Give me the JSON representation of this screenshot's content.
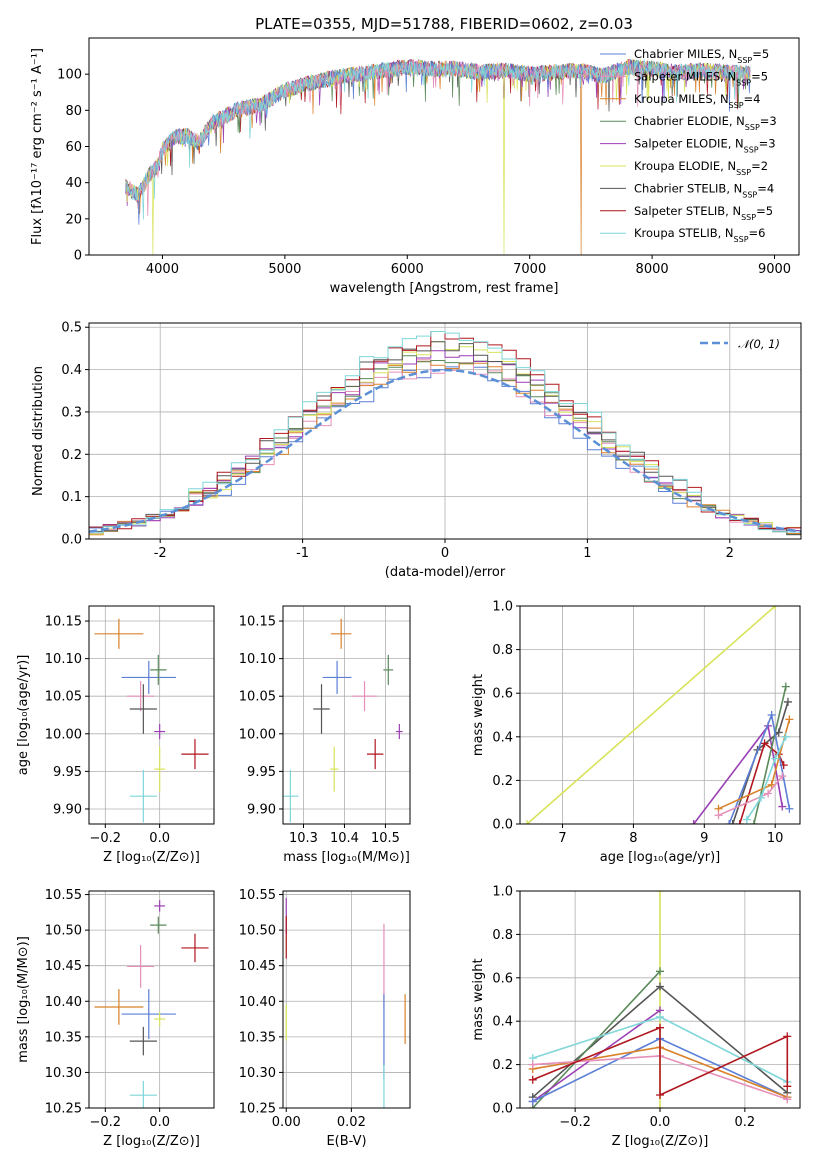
{
  "figure": {
    "title": "PLATE=0355, MJD=51788, FIBERID=0602, z=0.03"
  },
  "colors": {
    "Chabrier MILES": "#5b7fd6",
    "Salpeter MILES": "#e58fb9",
    "Kroupa MILES": "#d9822b",
    "Chabrier ELODIE": "#5a8a5a",
    "Salpeter ELODIE": "#9b3fb5",
    "Kroupa ELODIE": "#d8e35a",
    "Chabrier STELIB": "#555555",
    "Salpeter STELIB": "#b0171f",
    "Kroupa STELIB": "#7fd6d9",
    "gaussian": "#5b8fd6",
    "grid": "#b0b0b0"
  },
  "chart_data": [
    {
      "id": "spectrum",
      "type": "line",
      "xlabel": "wavelength [Angstrom, rest frame]",
      "ylabel": "Flux [fλ10⁻¹⁷ erg cm⁻² s⁻¹ A⁻¹]",
      "xlim": [
        3400,
        9200
      ],
      "ylim": [
        0,
        120
      ],
      "xticks": [
        4000,
        5000,
        6000,
        7000,
        8000,
        9000
      ],
      "yticks": [
        0,
        20,
        40,
        60,
        80,
        100
      ],
      "legend": "top-right",
      "continuum": {
        "x": [
          3700,
          3800,
          3900,
          3950,
          4000,
          4100,
          4200,
          4300,
          4400,
          4500,
          4600,
          4800,
          5000,
          5200,
          5400,
          5600,
          5800,
          6000,
          6200,
          6400,
          6600,
          6800,
          7000,
          7200,
          7400,
          7600,
          7800,
          8000,
          8200,
          8400,
          8600,
          8800
        ],
        "y": [
          38,
          33,
          45,
          48,
          58,
          65,
          66,
          62,
          73,
          76,
          80,
          83,
          91,
          95,
          98,
          100,
          102,
          104,
          103,
          103,
          101,
          102,
          100,
          101,
          102,
          99,
          104,
          103,
          101,
          102,
          101,
          100
        ]
      },
      "dropouts": [
        {
          "series": "Kroupa ELODIE",
          "x": 3920,
          "y": 0
        },
        {
          "series": "Kroupa ELODIE",
          "x": 6790,
          "y": 0
        },
        {
          "series": "Kroupa MILES",
          "x": 7420,
          "y": 0
        }
      ],
      "series": [
        {
          "name": "Chabrier MILES, N_SSP=5",
          "key": "Chabrier MILES",
          "label_main": "Chabrier MILES, N",
          "label_sub": "SSP",
          "label_tail": "=5"
        },
        {
          "name": "Salpeter MILES, N_SSP=5",
          "key": "Salpeter MILES",
          "label_main": "Salpeter MILES, N",
          "label_sub": "SSP",
          "label_tail": "=5"
        },
        {
          "name": "Kroupa MILES, N_SSP=4",
          "key": "Kroupa MILES",
          "label_main": "Kroupa MILES, N",
          "label_sub": "SSP",
          "label_tail": "=4"
        },
        {
          "name": "Chabrier ELODIE, N_SSP=3",
          "key": "Chabrier ELODIE",
          "label_main": "Chabrier ELODIE, N",
          "label_sub": "SSP",
          "label_tail": "=3"
        },
        {
          "name": "Salpeter ELODIE, N_SSP=3",
          "key": "Salpeter ELODIE",
          "label_main": "Salpeter ELODIE, N",
          "label_sub": "SSP",
          "label_tail": "=3"
        },
        {
          "name": "Kroupa ELODIE, N_SSP=2",
          "key": "Kroupa ELODIE",
          "label_main": "Kroupa ELODIE, N",
          "label_sub": "SSP",
          "label_tail": "=2"
        },
        {
          "name": "Chabrier STELIB, N_SSP=4",
          "key": "Chabrier STELIB",
          "label_main": "Chabrier STELIB, N",
          "label_sub": "SSP",
          "label_tail": "=4"
        },
        {
          "name": "Salpeter STELIB, N_SSP=5",
          "key": "Salpeter STELIB",
          "label_main": "Salpeter STELIB, N",
          "label_sub": "SSP",
          "label_tail": "=5"
        },
        {
          "name": "Kroupa STELIB, N_SSP=6",
          "key": "Kroupa STELIB",
          "label_main": "Kroupa STELIB, N",
          "label_sub": "SSP",
          "label_tail": "=6"
        }
      ]
    },
    {
      "id": "residuals",
      "type": "line",
      "xlabel": "(data-model)/error",
      "ylabel": "Normed distribution",
      "xlim": [
        -2.5,
        2.5
      ],
      "ylim": [
        0,
        0.51
      ],
      "xticks": [
        -2,
        -1,
        0,
        1,
        2
      ],
      "yticks": [
        0.0,
        0.1,
        0.2,
        0.3,
        0.4,
        0.5
      ],
      "ytick_labels": [
        "0.0",
        "0.1",
        "0.2",
        "0.3",
        "0.4",
        "0.5"
      ],
      "legend": "top-right",
      "legend_label": "𝒩(0, 1)",
      "bin_width": 0.1,
      "series_keys": [
        "Chabrier MILES",
        "Salpeter MILES",
        "Kroupa MILES",
        "Chabrier ELODIE",
        "Salpeter ELODIE",
        "Kroupa ELODIE",
        "Chabrier STELIB",
        "Salpeter STELIB",
        "Kroupa STELIB"
      ],
      "peak_values": {
        "max": 0.49,
        "min": 0.39
      }
    },
    {
      "id": "age-vs-Z",
      "type": "scatter",
      "xlabel": "Z [log₁₀(Z/Z⊙)]",
      "ylabel": "age  [log₁₀(age/yr)]",
      "xlim": [
        -0.26,
        0.2
      ],
      "ylim": [
        9.88,
        10.17
      ],
      "xticks": [
        -0.2,
        0.0
      ],
      "yticks": [
        9.9,
        9.95,
        10.0,
        10.05,
        10.1,
        10.15
      ],
      "xtick_labels": [
        "−0.2",
        "0.0"
      ],
      "ytick_labels": [
        "9.90",
        "9.95",
        "10.00",
        "10.05",
        "10.10",
        "10.15"
      ],
      "points": [
        {
          "key": "Kroupa MILES",
          "x": -0.15,
          "y": 10.133,
          "xerr": 0.09,
          "yerr": 0.02
        },
        {
          "key": "Chabrier MILES",
          "x": -0.04,
          "y": 10.075,
          "xerr": 0.1,
          "yerr": 0.022
        },
        {
          "key": "Chabrier ELODIE",
          "x": -0.005,
          "y": 10.085,
          "xerr": 0.03,
          "yerr": 0.02
        },
        {
          "key": "Salpeter MILES",
          "x": -0.07,
          "y": 10.05,
          "xerr": 0.05,
          "yerr": 0.02
        },
        {
          "key": "Chabrier STELIB",
          "x": -0.06,
          "y": 10.033,
          "xerr": 0.05,
          "yerr": 0.033
        },
        {
          "key": "Salpeter ELODIE",
          "x": 0.0,
          "y": 10.003,
          "xerr": 0.02,
          "yerr": 0.01
        },
        {
          "key": "Salpeter STELIB",
          "x": 0.13,
          "y": 9.973,
          "xerr": 0.05,
          "yerr": 0.02
        },
        {
          "key": "Kroupa ELODIE",
          "x": 0.0,
          "y": 9.953,
          "xerr": 0.02,
          "yerr": 0.03
        },
        {
          "key": "Kroupa STELIB",
          "x": -0.06,
          "y": 9.917,
          "xerr": 0.05,
          "yerr": 0.035
        }
      ]
    },
    {
      "id": "age-vs-mass",
      "type": "scatter",
      "xlabel": "mass [log₁₀(M/M⊙)]",
      "ylabel": "",
      "xlim": [
        10.25,
        10.56
      ],
      "ylim": [
        9.88,
        10.17
      ],
      "xticks": [
        10.3,
        10.4,
        10.5
      ],
      "yticks": [
        9.9,
        9.95,
        10.0,
        10.05,
        10.1,
        10.15
      ],
      "xtick_labels": [
        "10.3",
        "10.4",
        "10.5"
      ],
      "ytick_labels": [
        "9.90",
        "9.95",
        "10.00",
        "10.05",
        "10.10",
        "10.15"
      ],
      "points": [
        {
          "key": "Kroupa MILES",
          "x": 10.392,
          "y": 10.133,
          "xerr": 0.025,
          "yerr": 0.02
        },
        {
          "key": "Chabrier MILES",
          "x": 10.382,
          "y": 10.075,
          "xerr": 0.035,
          "yerr": 0.022
        },
        {
          "key": "Chabrier ELODIE",
          "x": 10.507,
          "y": 10.085,
          "xerr": 0.012,
          "yerr": 0.02
        },
        {
          "key": "Salpeter MILES",
          "x": 10.449,
          "y": 10.05,
          "xerr": 0.03,
          "yerr": 0.02
        },
        {
          "key": "Chabrier STELIB",
          "x": 10.344,
          "y": 10.033,
          "xerr": 0.02,
          "yerr": 0.033
        },
        {
          "key": "Salpeter ELODIE",
          "x": 10.534,
          "y": 10.003,
          "xerr": 0.008,
          "yerr": 0.01
        },
        {
          "key": "Salpeter STELIB",
          "x": 10.475,
          "y": 9.973,
          "xerr": 0.02,
          "yerr": 0.02
        },
        {
          "key": "Kroupa ELODIE",
          "x": 10.375,
          "y": 9.953,
          "xerr": 0.01,
          "yerr": 0.03
        },
        {
          "key": "Kroupa STELIB",
          "x": 10.268,
          "y": 9.917,
          "xerr": 0.02,
          "yerr": 0.035
        }
      ]
    },
    {
      "id": "weight-vs-age",
      "type": "line",
      "xlabel": "age  [log₁₀(age/yr)]",
      "ylabel": "mass weight",
      "xlim": [
        6.4,
        10.35
      ],
      "ylim": [
        0,
        1.0
      ],
      "xticks": [
        7,
        8,
        9,
        10
      ],
      "yticks": [
        0.0,
        0.2,
        0.4,
        0.6,
        0.8,
        1.0
      ],
      "ytick_labels": [
        "0.0",
        "0.2",
        "0.4",
        "0.6",
        "0.8",
        "1.0"
      ],
      "series": [
        {
          "key": "Kroupa ELODIE",
          "x": [
            6.5,
            10.0
          ],
          "y": [
            0.0,
            1.0
          ]
        },
        {
          "key": "Salpeter ELODIE",
          "x": [
            8.85,
            9.9,
            10.1
          ],
          "y": [
            0.0,
            0.45,
            0.08
          ]
        },
        {
          "key": "Chabrier STELIB",
          "x": [
            9.4,
            9.75,
            10.05,
            10.18
          ],
          "y": [
            0.0,
            0.34,
            0.42,
            0.56
          ]
        },
        {
          "key": "Salpeter STELIB",
          "x": [
            9.5,
            9.85,
            10.05,
            10.12
          ],
          "y": [
            0.0,
            0.37,
            0.32,
            0.27
          ]
        },
        {
          "key": "Chabrier ELODIE",
          "x": [
            9.7,
            10.15
          ],
          "y": [
            0.0,
            0.63
          ]
        },
        {
          "key": "Chabrier MILES",
          "x": [
            9.35,
            9.95,
            10.2
          ],
          "y": [
            0.0,
            0.5,
            0.07
          ]
        },
        {
          "key": "Kroupa MILES",
          "x": [
            9.2,
            9.95,
            10.2
          ],
          "y": [
            0.07,
            0.18,
            0.48
          ]
        },
        {
          "key": "Salpeter MILES",
          "x": [
            9.2,
            9.9,
            10.1
          ],
          "y": [
            0.04,
            0.14,
            0.22
          ]
        },
        {
          "key": "Kroupa STELIB",
          "x": [
            9.6,
            9.8,
            10.0,
            10.15
          ],
          "y": [
            0.02,
            0.12,
            0.3,
            0.4
          ]
        }
      ]
    },
    {
      "id": "mass-vs-Z",
      "type": "scatter",
      "xlabel": "Z [log₁₀(Z/Z⊙)]",
      "ylabel": "mass [log₁₀(M/M⊙)]",
      "xlim": [
        -0.26,
        0.2
      ],
      "ylim": [
        10.25,
        10.555
      ],
      "xticks": [
        -0.2,
        0.0
      ],
      "yticks": [
        10.25,
        10.3,
        10.35,
        10.4,
        10.45,
        10.5,
        10.55
      ],
      "xtick_labels": [
        "−0.2",
        "0.0"
      ],
      "ytick_labels": [
        "10.25",
        "10.30",
        "10.35",
        "10.40",
        "10.45",
        "10.50",
        "10.55"
      ],
      "points": [
        {
          "key": "Salpeter ELODIE",
          "x": 0.0,
          "y": 10.534,
          "xerr": 0.02,
          "yerr": 0.008
        },
        {
          "key": "Chabrier ELODIE",
          "x": -0.005,
          "y": 10.507,
          "xerr": 0.03,
          "yerr": 0.012
        },
        {
          "key": "Salpeter STELIB",
          "x": 0.13,
          "y": 10.475,
          "xerr": 0.05,
          "yerr": 0.02
        },
        {
          "key": "Salpeter MILES",
          "x": -0.07,
          "y": 10.449,
          "xerr": 0.05,
          "yerr": 0.03
        },
        {
          "key": "Kroupa MILES",
          "x": -0.15,
          "y": 10.392,
          "xerr": 0.09,
          "yerr": 0.025
        },
        {
          "key": "Chabrier MILES",
          "x": -0.04,
          "y": 10.382,
          "xerr": 0.1,
          "yerr": 0.035
        },
        {
          "key": "Kroupa ELODIE",
          "x": 0.0,
          "y": 10.375,
          "xerr": 0.02,
          "yerr": 0.01
        },
        {
          "key": "Chabrier STELIB",
          "x": -0.06,
          "y": 10.344,
          "xerr": 0.05,
          "yerr": 0.02
        },
        {
          "key": "Kroupa STELIB",
          "x": -0.06,
          "y": 10.268,
          "xerr": 0.05,
          "yerr": 0.02
        }
      ]
    },
    {
      "id": "mass-vs-ebv",
      "type": "scatter",
      "xlabel": "E(B-V)",
      "ylabel": "",
      "xlim": [
        -0.001,
        0.038
      ],
      "ylim": [
        10.25,
        10.555
      ],
      "xticks": [
        0.0,
        0.02
      ],
      "yticks": [
        10.25,
        10.3,
        10.35,
        10.4,
        10.45,
        10.5,
        10.55
      ],
      "xtick_labels": [
        "0.00",
        "0.02"
      ],
      "ytick_labels": [
        "10.25",
        "10.30",
        "10.35",
        "10.40",
        "10.45",
        "10.50",
        "10.55"
      ],
      "points": [
        {
          "key": "Salpeter ELODIE",
          "x": 0.0,
          "y": 10.52,
          "xerr": 0.0,
          "yerr": 0.025
        },
        {
          "key": "Salpeter STELIB",
          "x": 0.0,
          "y": 10.49,
          "xerr": 0.0,
          "yerr": 0.03
        },
        {
          "key": "Kroupa ELODIE",
          "x": 0.0,
          "y": 10.37,
          "xerr": 0.0,
          "yerr": 0.025
        },
        {
          "key": "Salpeter MILES",
          "x": 0.03,
          "y": 10.449,
          "xerr": 0.0,
          "yerr": 0.06
        },
        {
          "key": "Chabrier MILES",
          "x": 0.03,
          "y": 10.35,
          "xerr": 0.0,
          "yerr": 0.06
        },
        {
          "key": "Kroupa STELIB",
          "x": 0.03,
          "y": 10.28,
          "xerr": 0.0,
          "yerr": 0.03
        },
        {
          "key": "Kroupa MILES",
          "x": 0.0365,
          "y": 10.375,
          "xerr": 0.0,
          "yerr": 0.035
        }
      ]
    },
    {
      "id": "weight-vs-Z",
      "type": "line",
      "xlabel": "Z [log₁₀(Z/Z⊙)]",
      "ylabel": "mass weight",
      "xlim": [
        -0.33,
        0.33
      ],
      "ylim": [
        0,
        1.0
      ],
      "xticks": [
        -0.2,
        0.0,
        0.2
      ],
      "yticks": [
        0.0,
        0.2,
        0.4,
        0.6,
        0.8,
        1.0
      ],
      "xtick_labels": [
        "−0.2",
        "0.0",
        "0.2"
      ],
      "ytick_labels": [
        "0.0",
        "0.2",
        "0.4",
        "0.6",
        "0.8",
        "1.0"
      ],
      "series": [
        {
          "key": "Kroupa ELODIE",
          "x": [
            0.0,
            0.0
          ],
          "y": [
            0.0,
            1.0
          ]
        },
        {
          "key": "Chabrier STELIB",
          "x": [
            -0.3,
            0.0,
            0.3
          ],
          "y": [
            0.05,
            0.56,
            0.07
          ]
        },
        {
          "key": "Chabrier ELODIE",
          "x": [
            -0.3,
            0.0
          ],
          "y": [
            0.0,
            0.63
          ]
        },
        {
          "key": "Salpeter ELODIE",
          "x": [
            -0.3,
            0.0
          ],
          "y": [
            0.03,
            0.45
          ]
        },
        {
          "key": "Kroupa STELIB",
          "x": [
            -0.3,
            0.0,
            0.3
          ],
          "y": [
            0.23,
            0.42,
            0.12
          ]
        },
        {
          "key": "Chabrier MILES",
          "x": [
            -0.3,
            0.0,
            0.3
          ],
          "y": [
            0.03,
            0.32,
            0.05
          ]
        },
        {
          "key": "Kroupa MILES",
          "x": [
            -0.3,
            0.0,
            0.3
          ],
          "y": [
            0.18,
            0.28,
            0.05
          ]
        },
        {
          "key": "Salpeter MILES",
          "x": [
            -0.3,
            0.0,
            0.3
          ],
          "y": [
            0.2,
            0.24,
            0.04
          ]
        },
        {
          "key": "Salpeter STELIB",
          "x": [
            -0.3,
            0.0,
            0.0,
            0.3,
            0.3
          ],
          "y": [
            0.13,
            0.37,
            0.06,
            0.33,
            0.1
          ]
        }
      ]
    }
  ]
}
